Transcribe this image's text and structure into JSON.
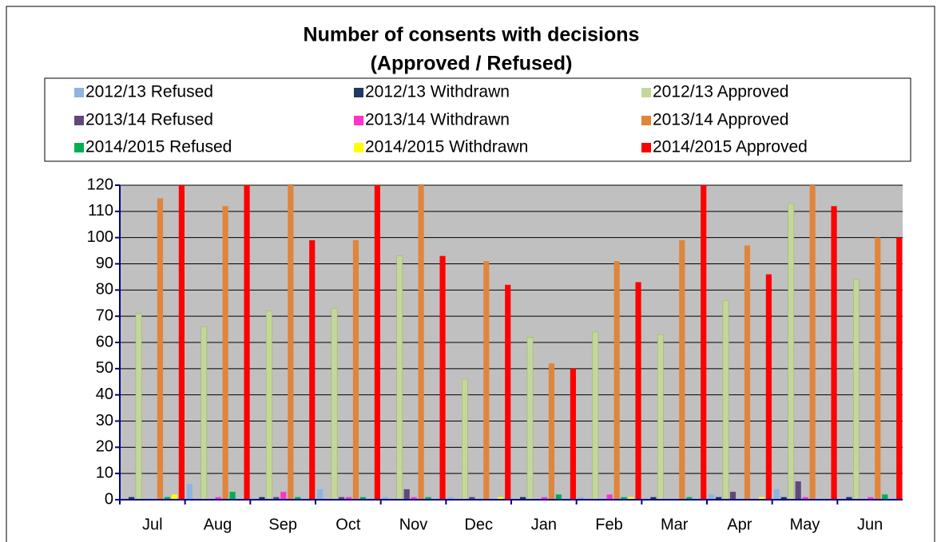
{
  "chart_data": {
    "type": "bar",
    "title": "Number of consents with decisions",
    "subtitle": "(Approved / Refused)",
    "categories": [
      "Jul",
      "Aug",
      "Sep",
      "Oct",
      "Nov",
      "Dec",
      "Jan",
      "Feb",
      "Mar",
      "Apr",
      "May",
      "Jun"
    ],
    "series": [
      {
        "name": "2012/13 Refused",
        "color": "#8db4e2",
        "values": [
          0,
          6,
          0,
          4,
          1,
          1,
          0,
          1,
          0,
          2,
          4,
          0
        ]
      },
      {
        "name": "2012/13 Withdrawn",
        "color": "#1f3864",
        "values": [
          1,
          0,
          1,
          0,
          0,
          0,
          1,
          0,
          1,
          1,
          1,
          1
        ]
      },
      {
        "name": "2012/13 Approved",
        "color": "#c4d79b",
        "values": [
          71,
          66,
          72,
          73,
          93,
          46,
          62,
          64,
          63,
          76,
          113,
          84
        ]
      },
      {
        "name": "2013/14 Refused",
        "color": "#60497a",
        "values": [
          0,
          0,
          1,
          1,
          4,
          1,
          0,
          0,
          0,
          3,
          7,
          0
        ]
      },
      {
        "name": "2013/14 Withdrawn",
        "color": "#ff33cc",
        "values": [
          0,
          1,
          3,
          1,
          1,
          0,
          1,
          2,
          0,
          0,
          1,
          1
        ]
      },
      {
        "name": "2013/14 Approved",
        "color": "#e0853b",
        "values": [
          115,
          112,
          120,
          99,
          120,
          91,
          52,
          91,
          99,
          97,
          120,
          100
        ]
      },
      {
        "name": "2014/2015 Refused",
        "color": "#00b050",
        "values": [
          1,
          3,
          1,
          1,
          1,
          0,
          2,
          1,
          1,
          0,
          0,
          2
        ]
      },
      {
        "name": "2014/2015 Withdrawn",
        "color": "#ffff00",
        "values": [
          2,
          0,
          0,
          0,
          0,
          1,
          0,
          1,
          0,
          1,
          0,
          0
        ]
      },
      {
        "name": "2014/2015 Approved",
        "color": "#ff0000",
        "values": [
          120,
          120,
          99,
          120,
          93,
          82,
          50,
          83,
          120,
          86,
          112,
          100
        ]
      }
    ],
    "ylim": [
      0,
      120
    ],
    "yticks": [
      0,
      10,
      20,
      30,
      40,
      50,
      60,
      70,
      80,
      90,
      100,
      110,
      120
    ],
    "grid": true,
    "legend_position": "top"
  }
}
